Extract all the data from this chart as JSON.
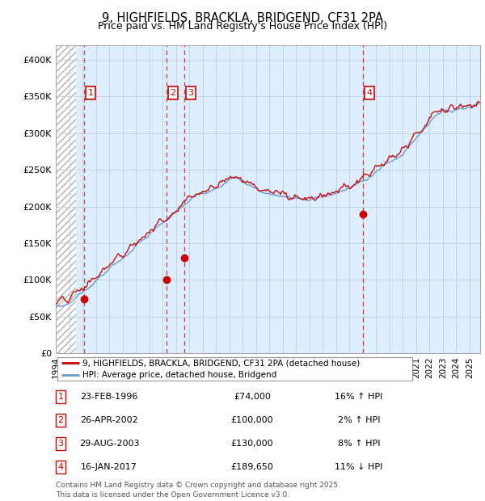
{
  "title_line1": "9, HIGHFIELDS, BRACKLA, BRIDGEND, CF31 2PA",
  "title_line2": "Price paid vs. HM Land Registry's House Price Index (HPI)",
  "ylim": [
    0,
    420000
  ],
  "yticks": [
    0,
    50000,
    100000,
    150000,
    200000,
    250000,
    300000,
    350000,
    400000
  ],
  "ytick_labels": [
    "£0",
    "£50K",
    "£100K",
    "£150K",
    "£200K",
    "£250K",
    "£300K",
    "£350K",
    "£400K"
  ],
  "xlim_start": 1994.0,
  "xlim_end": 2025.8,
  "hatch_end": 1995.5,
  "sale_dates": [
    1996.14,
    2002.32,
    2003.66,
    2017.04
  ],
  "sale_prices": [
    74000,
    100000,
    130000,
    189650
  ],
  "sale_labels": [
    "1",
    "2",
    "3",
    "4"
  ],
  "legend_label_red": "9, HIGHFIELDS, BRACKLA, BRIDGEND, CF31 2PA (detached house)",
  "legend_label_blue": "HPI: Average price, detached house, Bridgend",
  "table_data": [
    [
      "1",
      "23-FEB-1996",
      "£74,000",
      "16% ↑ HPI"
    ],
    [
      "2",
      "26-APR-2002",
      "£100,000",
      "2% ↑ HPI"
    ],
    [
      "3",
      "29-AUG-2003",
      "£130,000",
      "8% ↑ HPI"
    ],
    [
      "4",
      "16-JAN-2017",
      "£189,650",
      "11% ↓ HPI"
    ]
  ],
  "footer": "Contains HM Land Registry data © Crown copyright and database right 2025.\nThis data is licensed under the Open Government Licence v3.0.",
  "red_color": "#cc0000",
  "blue_color": "#6699cc",
  "grid_color": "#bbcfe0",
  "bg_plot": "#ddeeff",
  "bg_white": "#ffffff"
}
